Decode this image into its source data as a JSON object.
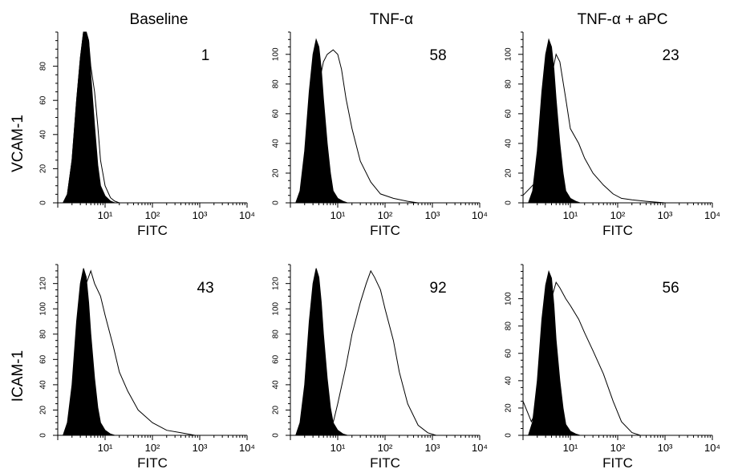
{
  "column_titles": [
    "Baseline",
    "TNF-α",
    "TNF-α + aPC"
  ],
  "row_titles": [
    "VCAM-1",
    "ICAM-1"
  ],
  "colors": {
    "isotype_fill": "#000000",
    "sample_line": "#000000",
    "background": "#ffffff"
  },
  "chart_data": [
    {
      "type": "area",
      "row": "VCAM-1",
      "column": "Baseline",
      "xlabel": "FITC",
      "x_scale": "log",
      "xlim": [
        1,
        10000
      ],
      "x_ticks": [
        "10¹",
        "10²",
        "10³",
        "10⁴"
      ],
      "ylim": [
        0,
        100
      ],
      "y_ticks": [
        0,
        20,
        40,
        60,
        80
      ],
      "annotation": "1",
      "series": [
        {
          "role": "isotype (filled)",
          "x": [
            1.3,
            1.6,
            2.0,
            2.5,
            3.0,
            3.5,
            4.0,
            4.5,
            5.0,
            6.0,
            7.0,
            8.0,
            10,
            13,
            16
          ],
          "y": [
            0,
            5,
            25,
            60,
            85,
            100,
            100,
            95,
            75,
            45,
            22,
            10,
            4,
            1,
            0
          ]
        },
        {
          "role": "sample (outline)",
          "x": [
            1.3,
            1.6,
            2.0,
            2.5,
            3.0,
            3.5,
            4.0,
            4.5,
            5.0,
            6.0,
            7.0,
            8.0,
            10,
            13,
            16,
            20
          ],
          "y": [
            0,
            5,
            25,
            60,
            85,
            100,
            100,
            95,
            80,
            65,
            45,
            25,
            10,
            3,
            1,
            0
          ]
        }
      ]
    },
    {
      "type": "area",
      "row": "VCAM-1",
      "column": "TNF-α",
      "xlabel": "FITC",
      "x_scale": "log",
      "xlim": [
        1,
        10000
      ],
      "x_ticks": [
        "10¹",
        "10²",
        "10³",
        "10⁴"
      ],
      "ylim": [
        0,
        115
      ],
      "y_ticks": [
        0,
        20,
        40,
        60,
        80,
        100
      ],
      "annotation": "58",
      "series": [
        {
          "role": "isotype (filled)",
          "x": [
            1.3,
            1.6,
            2.0,
            2.5,
            3.0,
            3.5,
            4.0,
            4.5,
            5.0,
            6.0,
            7.0,
            8.0,
            10,
            13,
            16
          ],
          "y": [
            0,
            8,
            35,
            75,
            100,
            110,
            105,
            90,
            70,
            40,
            20,
            8,
            3,
            1,
            0
          ]
        },
        {
          "role": "sample (outline)",
          "x": [
            1.3,
            2.0,
            3.0,
            4.0,
            5.0,
            6.0,
            8.0,
            10,
            12,
            15,
            20,
            30,
            50,
            80,
            150,
            300,
            500
          ],
          "y": [
            0,
            10,
            50,
            80,
            95,
            100,
            103,
            100,
            90,
            70,
            50,
            28,
            14,
            6,
            3,
            1,
            0
          ]
        }
      ]
    },
    {
      "type": "area",
      "row": "VCAM-1",
      "column": "TNF-α + aPC",
      "xlabel": "FITC",
      "x_scale": "log",
      "xlim": [
        1,
        10000
      ],
      "x_ticks": [
        "10¹",
        "10²",
        "10³",
        "10⁴"
      ],
      "ylim": [
        0,
        115
      ],
      "y_ticks": [
        0,
        20,
        40,
        60,
        80,
        100
      ],
      "annotation": "23",
      "series": [
        {
          "role": "isotype (filled)",
          "x": [
            1.3,
            1.6,
            2.0,
            2.5,
            3.0,
            3.5,
            4.0,
            4.5,
            5.0,
            6.0,
            7.0,
            8.0,
            10,
            13,
            16
          ],
          "y": [
            0,
            8,
            35,
            75,
            100,
            110,
            105,
            90,
            70,
            40,
            20,
            8,
            3,
            1,
            0
          ]
        },
        {
          "role": "sample (outline)",
          "x": [
            1.0,
            2.0,
            3.0,
            4.0,
            5.0,
            6.0,
            8.0,
            10,
            15,
            20,
            30,
            50,
            80,
            120,
            200,
            400,
            1000
          ],
          "y": [
            5,
            15,
            55,
            85,
            100,
            95,
            70,
            50,
            40,
            30,
            20,
            12,
            6,
            3,
            2,
            1,
            0
          ]
        }
      ]
    },
    {
      "type": "area",
      "row": "ICAM-1",
      "column": "Baseline",
      "xlabel": "FITC",
      "x_scale": "log",
      "xlim": [
        1,
        10000
      ],
      "x_ticks": [
        "10¹",
        "10²",
        "10³",
        "10⁴"
      ],
      "ylim": [
        0,
        135
      ],
      "y_ticks": [
        0,
        20,
        40,
        60,
        80,
        100,
        120
      ],
      "annotation": "43",
      "series": [
        {
          "role": "isotype (filled)",
          "x": [
            1.3,
            1.6,
            2.0,
            2.5,
            3.0,
            3.5,
            4.0,
            4.5,
            5.0,
            6.0,
            7.0,
            8.0,
            10,
            13,
            16
          ],
          "y": [
            0,
            10,
            40,
            90,
            120,
            132,
            125,
            105,
            80,
            45,
            22,
            10,
            4,
            1,
            0
          ]
        },
        {
          "role": "sample (outline)",
          "x": [
            1.3,
            2.0,
            3.0,
            4.0,
            5.0,
            6.0,
            8.0,
            10,
            15,
            20,
            30,
            50,
            100,
            200,
            400,
            800
          ],
          "y": [
            0,
            20,
            70,
            120,
            130,
            120,
            110,
            95,
            70,
            50,
            35,
            20,
            10,
            4,
            2,
            0
          ]
        }
      ]
    },
    {
      "type": "area",
      "row": "ICAM-1",
      "column": "TNF-α",
      "xlabel": "FITC",
      "x_scale": "log",
      "xlim": [
        1,
        10000
      ],
      "x_ticks": [
        "10¹",
        "10²",
        "10³",
        "10⁴"
      ],
      "ylim": [
        0,
        135
      ],
      "y_ticks": [
        0,
        20,
        40,
        60,
        80,
        100,
        120
      ],
      "annotation": "92",
      "series": [
        {
          "role": "isotype (filled)",
          "x": [
            1.3,
            1.6,
            2.0,
            2.5,
            3.0,
            3.5,
            4.0,
            4.5,
            5.0,
            6.0,
            7.0,
            8.0,
            10,
            13,
            16
          ],
          "y": [
            0,
            10,
            40,
            90,
            120,
            132,
            125,
            105,
            80,
            45,
            22,
            10,
            4,
            1,
            0
          ]
        },
        {
          "role": "sample (outline)",
          "x": [
            5,
            8,
            10,
            15,
            20,
            30,
            40,
            50,
            60,
            80,
            100,
            150,
            200,
            300,
            500,
            800,
            1200
          ],
          "y": [
            0,
            10,
            25,
            55,
            80,
            105,
            120,
            130,
            125,
            115,
            100,
            75,
            50,
            25,
            8,
            2,
            0
          ]
        }
      ]
    },
    {
      "type": "area",
      "row": "ICAM-1",
      "column": "TNF-α + aPC",
      "xlabel": "FITC",
      "x_scale": "log",
      "xlim": [
        1,
        10000
      ],
      "x_ticks": [
        "10¹",
        "10²",
        "10³",
        "10⁴"
      ],
      "ylim": [
        0,
        125
      ],
      "y_ticks": [
        0,
        20,
        40,
        60,
        80,
        100
      ],
      "annotation": "56",
      "series": [
        {
          "role": "isotype (filled)",
          "x": [
            1.3,
            1.6,
            2.0,
            2.5,
            3.0,
            3.5,
            4.0,
            4.5,
            5.0,
            6.0,
            7.0,
            8.0,
            10,
            13,
            16
          ],
          "y": [
            0,
            10,
            40,
            85,
            110,
            120,
            115,
            95,
            70,
            40,
            20,
            8,
            3,
            1,
            0
          ]
        },
        {
          "role": "sample (outline)",
          "x": [
            1.0,
            1.5,
            2.0,
            3.0,
            4.0,
            5.0,
            6.0,
            8.0,
            10,
            15,
            20,
            30,
            50,
            80,
            120,
            200,
            300
          ],
          "y": [
            25,
            10,
            20,
            60,
            100,
            112,
            108,
            100,
            95,
            85,
            75,
            62,
            45,
            25,
            10,
            2,
            0
          ]
        }
      ]
    }
  ]
}
